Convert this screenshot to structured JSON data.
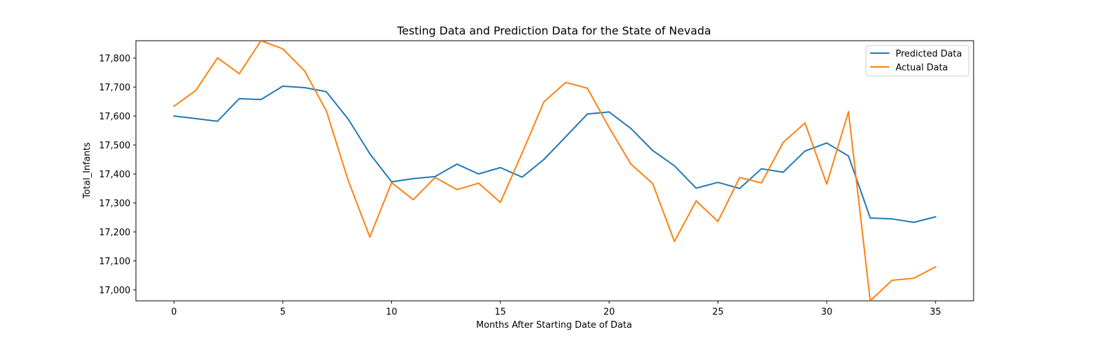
{
  "chart_data": {
    "type": "line",
    "title": "Testing Data and Prediction Data for the State of Nevada",
    "xlabel": "Months After Starting Date of Data",
    "ylabel": "Total_Infants",
    "xlim": [
      -1.75,
      36.75
    ],
    "ylim": [
      16962,
      17860
    ],
    "x_ticks": [
      0,
      5,
      10,
      15,
      20,
      25,
      30,
      35
    ],
    "y_ticks": [
      17000,
      17100,
      17200,
      17300,
      17400,
      17500,
      17600,
      17700,
      17800
    ],
    "y_tick_labels": [
      "17,000",
      "17,100",
      "17,200",
      "17,300",
      "17,400",
      "17,500",
      "17,600",
      "17,700",
      "17,800"
    ],
    "grid": false,
    "legend_position": "top-right",
    "x": [
      0,
      1,
      2,
      3,
      4,
      5,
      6,
      7,
      8,
      9,
      10,
      11,
      12,
      13,
      14,
      15,
      16,
      17,
      18,
      19,
      20,
      21,
      22,
      23,
      24,
      25,
      26,
      27,
      28,
      29,
      30,
      31,
      32,
      33,
      34,
      35
    ],
    "series": [
      {
        "name": "Predicted Data",
        "color": "#1f77b4",
        "values": [
          17600,
          17591,
          17582,
          17660,
          17657,
          17703,
          17698,
          17684,
          17590,
          17470,
          17373,
          17384,
          17391,
          17434,
          17400,
          17422,
          17389,
          17450,
          17528,
          17607,
          17614,
          17557,
          17481,
          17428,
          17351,
          17371,
          17350,
          17418,
          17406,
          17479,
          17507,
          17462,
          17248,
          17245,
          17233,
          17252
        ]
      },
      {
        "name": "Actual Data",
        "color": "#ff7f0e",
        "values": [
          17634,
          17688,
          17801,
          17746,
          17860,
          17832,
          17756,
          17618,
          17379,
          17182,
          17370,
          17311,
          17388,
          17346,
          17368,
          17302,
          17472,
          17649,
          17716,
          17696,
          17560,
          17434,
          17367,
          17167,
          17307,
          17236,
          17388,
          17369,
          17509,
          17576,
          17365,
          17615,
          16962,
          17033,
          17040,
          17079
        ]
      }
    ]
  }
}
